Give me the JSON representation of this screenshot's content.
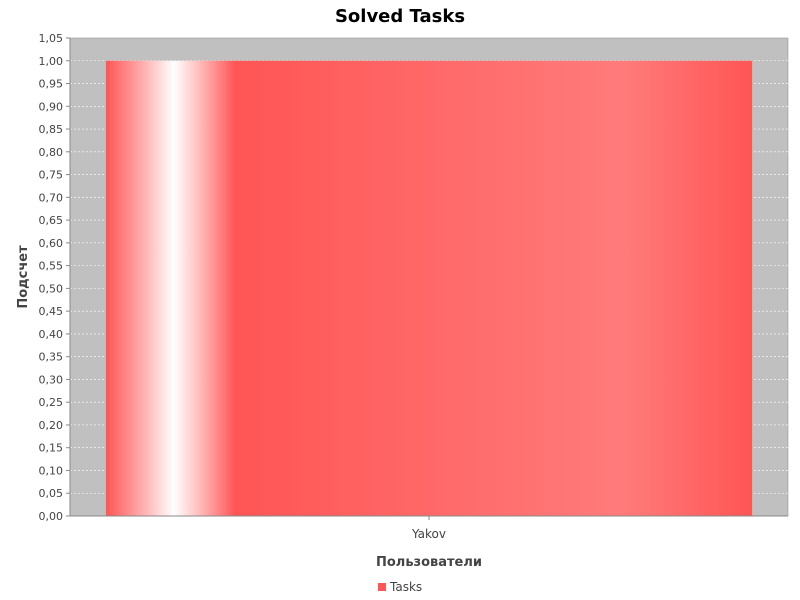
{
  "chart_data": {
    "type": "bar",
    "title": "Solved Tasks",
    "xlabel": "Пользователи",
    "ylabel": "Подсчет",
    "categories": [
      "Yakov"
    ],
    "series": [
      {
        "name": "Tasks",
        "values": [
          1.0
        ]
      }
    ],
    "ylim": [
      0,
      1.05
    ],
    "y_ticks": [
      "0,00",
      "0,05",
      "0,10",
      "0,15",
      "0,20",
      "0,25",
      "0,30",
      "0,35",
      "0,40",
      "0,45",
      "0,50",
      "0,55",
      "0,60",
      "0,65",
      "0,70",
      "0,75",
      "0,80",
      "0,85",
      "0,90",
      "0,95",
      "1,00",
      "1,05"
    ],
    "grid": true,
    "legend_position": "bottom",
    "colors": {
      "plot_background": "#c0c0c0",
      "bar": "#ff5555",
      "grid": "#ffffff"
    }
  }
}
